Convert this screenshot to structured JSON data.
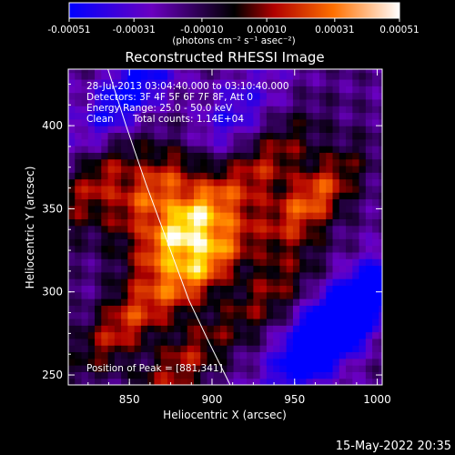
{
  "colorbar": {
    "tick_labels": [
      "-0.00051",
      "-0.00031",
      "-0.00010",
      "0.00010",
      "0.00031",
      "0.00051"
    ],
    "tick_values": [
      -0.00051,
      -0.00031,
      -0.0001,
      0.0001,
      0.00031,
      0.00051
    ],
    "range": [
      -0.00051,
      0.00051
    ],
    "unit_label": "(photons cm⁻² s⁻¹ asec⁻²)",
    "colormap": [
      "#0000ff",
      "#6a00c0",
      "#000000",
      "#b00000",
      "#ff7000",
      "#ffffff"
    ]
  },
  "chart_data": {
    "type": "heatmap",
    "title": "Reconstructed RHESSI Image",
    "xlabel": "Heliocentric X (arcsec)",
    "ylabel": "Heliocentric Y (arcsec)",
    "xlim": [
      813,
      1003
    ],
    "ylim": [
      244,
      434
    ],
    "x_ticks": [
      850,
      900,
      950,
      1000
    ],
    "y_ticks": [
      250,
      300,
      350,
      400
    ],
    "grid": false,
    "annotations": {
      "time_range": "28-Jul-2013 03:04:40.000 to 03:10:40.000",
      "detectors": "Detectors: 3F 4F 5F 6F 7F 8F, Att 0",
      "energy_range": "Energy Range: 25.0 - 50.0 keV",
      "method": "Clean",
      "total_counts": "Total counts: 1.14E+04",
      "peak": "Position of Peak = [881,341]"
    },
    "peak_position": [
      881,
      341
    ],
    "sources": [
      {
        "x": 883,
        "y": 340,
        "intensity": 1.0
      },
      {
        "x": 896,
        "y": 318,
        "intensity": 0.85
      },
      {
        "x": 866,
        "y": 362,
        "intensity": 0.7
      },
      {
        "x": 960,
        "y": 355,
        "intensity": 0.72
      },
      {
        "x": 935,
        "y": 378,
        "intensity": 0.45
      },
      {
        "x": 846,
        "y": 280,
        "intensity": 0.55
      },
      {
        "x": 880,
        "y": 255,
        "intensity": 0.5
      },
      {
        "x": 935,
        "y": 300,
        "intensity": 0.4
      },
      {
        "x": 830,
        "y": 365,
        "intensity": 0.5
      },
      {
        "x": 985,
        "y": 290,
        "intensity": -0.9
      },
      {
        "x": 965,
        "y": 270,
        "intensity": -0.8
      },
      {
        "x": 850,
        "y": 420,
        "intensity": -0.6
      },
      {
        "x": 910,
        "y": 405,
        "intensity": -0.4
      }
    ],
    "limb": {
      "x": [
        837,
        848,
        860,
        873,
        886,
        898,
        911
      ],
      "y": [
        434,
        400,
        365,
        330,
        295,
        270,
        244
      ]
    }
  },
  "footer_date": "15-May-2022 20:35"
}
